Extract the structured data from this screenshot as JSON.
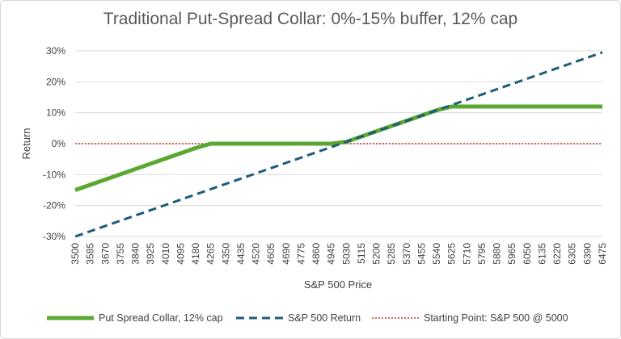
{
  "chart_data": {
    "type": "line",
    "title": "Traditional Put-Spread Collar: 0%-15% buffer, 12% cap",
    "xlabel": "S&P 500 Price",
    "ylabel": "Return",
    "x": [
      3500,
      3585,
      3670,
      3755,
      3840,
      3925,
      4010,
      4095,
      4180,
      4265,
      4350,
      4435,
      4520,
      4605,
      4690,
      4775,
      4860,
      4945,
      5030,
      5115,
      5200,
      5285,
      5370,
      5455,
      5540,
      5625,
      5710,
      5795,
      5880,
      5965,
      6050,
      6135,
      6220,
      6305,
      6390,
      6475
    ],
    "x_tick_labels": [
      "3500",
      "3585",
      "3670",
      "3755",
      "3840",
      "3925",
      "4010",
      "4095",
      "4180",
      "4265",
      "4350",
      "4435",
      "4520",
      "4605",
      "4690",
      "4775",
      "4860",
      "4945",
      "5030",
      "5115",
      "5200",
      "5285",
      "5370",
      "5455",
      "5540",
      "5625",
      "5710",
      "5795",
      "5880",
      "5965",
      "6050",
      "6135",
      "6220",
      "6305",
      "6390",
      "6475"
    ],
    "ylim": [
      -0.3,
      0.3
    ],
    "y_ticks": [
      -0.3,
      -0.2,
      -0.1,
      0,
      0.1,
      0.2,
      0.3
    ],
    "y_tick_labels": [
      "-30%",
      "-20%",
      "-10%",
      "0%",
      "10%",
      "20%",
      "30%"
    ],
    "grid": true,
    "legend_position": "bottom",
    "series": [
      {
        "name": "Put Spread Collar, 12% cap",
        "color": "#5aa832",
        "style": "solid",
        "values": [
          -0.15,
          -0.133,
          -0.116,
          -0.099,
          -0.082,
          -0.065,
          -0.048,
          -0.031,
          -0.014,
          0,
          0,
          0,
          0,
          0,
          0,
          0,
          0,
          0,
          0.006,
          0.023,
          0.04,
          0.057,
          0.074,
          0.091,
          0.108,
          0.12,
          0.12,
          0.12,
          0.12,
          0.12,
          0.12,
          0.12,
          0.12,
          0.12,
          0.12,
          0.12
        ]
      },
      {
        "name": "S&P 500 Return",
        "color": "#1f5c7a",
        "style": "dashed",
        "values": [
          -0.3,
          -0.283,
          -0.266,
          -0.249,
          -0.232,
          -0.215,
          -0.198,
          -0.181,
          -0.164,
          -0.147,
          -0.13,
          -0.113,
          -0.096,
          -0.079,
          -0.062,
          -0.045,
          -0.028,
          -0.011,
          0.006,
          0.023,
          0.04,
          0.057,
          0.074,
          0.091,
          0.108,
          0.125,
          0.142,
          0.159,
          0.176,
          0.193,
          0.21,
          0.227,
          0.244,
          0.261,
          0.278,
          0.295
        ]
      },
      {
        "name": "Starting Point: S&P 500 @ 5000",
        "color": "#c0392b",
        "style": "dotted",
        "values": [
          0,
          0,
          0,
          0,
          0,
          0,
          0,
          0,
          0,
          0,
          0,
          0,
          0,
          0,
          0,
          0,
          0,
          0,
          0,
          0,
          0,
          0,
          0,
          0,
          0,
          0,
          0,
          0,
          0,
          0,
          0,
          0,
          0,
          0,
          0,
          0
        ]
      }
    ]
  }
}
